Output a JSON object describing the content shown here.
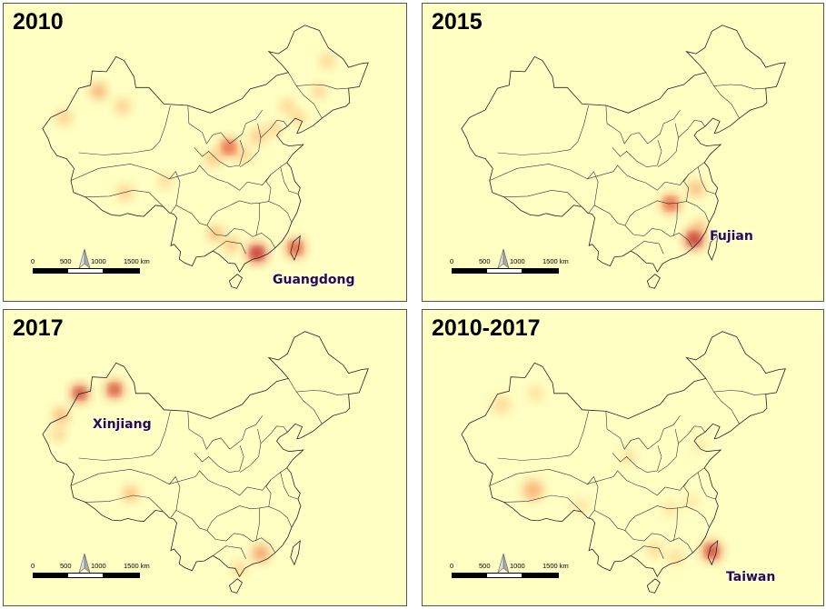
{
  "panels": [
    {
      "year": "2010",
      "label": "Guangdong",
      "hotspots": [
        {
          "lon": 113.8,
          "lat": 22.9,
          "r": 0.1,
          "intensity": 1.0
        },
        {
          "lon": 121.0,
          "lat": 23.6,
          "r": 0.1,
          "intensity": 0.8
        },
        {
          "lon": 108.5,
          "lat": 37.0,
          "r": 0.1,
          "intensity": 0.75
        },
        {
          "lon": 105.5,
          "lat": 35.5,
          "r": 0.08,
          "intensity": 0.5
        },
        {
          "lon": 84.0,
          "lat": 44.5,
          "r": 0.08,
          "intensity": 0.65
        },
        {
          "lon": 88.5,
          "lat": 42.5,
          "r": 0.08,
          "intensity": 0.45
        },
        {
          "lon": 77.5,
          "lat": 41.0,
          "r": 0.08,
          "intensity": 0.45
        },
        {
          "lon": 89.0,
          "lat": 31.0,
          "r": 0.08,
          "intensity": 0.45
        },
        {
          "lon": 96.5,
          "lat": 32.5,
          "r": 0.07,
          "intensity": 0.4
        },
        {
          "lon": 106.0,
          "lat": 25.5,
          "r": 0.08,
          "intensity": 0.55
        },
        {
          "lon": 111.5,
          "lat": 36.0,
          "r": 0.07,
          "intensity": 0.45
        },
        {
          "lon": 114.0,
          "lat": 38.5,
          "r": 0.08,
          "intensity": 0.5
        },
        {
          "lon": 117.0,
          "lat": 39.5,
          "r": 0.07,
          "intensity": 0.45
        },
        {
          "lon": 119.5,
          "lat": 42.5,
          "r": 0.07,
          "intensity": 0.45
        },
        {
          "lon": 121.5,
          "lat": 41.0,
          "r": 0.07,
          "intensity": 0.45
        },
        {
          "lon": 125.5,
          "lat": 44.5,
          "r": 0.07,
          "intensity": 0.45
        },
        {
          "lon": 127.0,
          "lat": 48.5,
          "r": 0.07,
          "intensity": 0.45
        },
        {
          "lon": 109.0,
          "lat": 24.0,
          "r": 0.08,
          "intensity": 0.5
        }
      ]
    },
    {
      "year": "2015",
      "label": "Fujian",
      "hotspots": [
        {
          "lon": 117.5,
          "lat": 24.8,
          "r": 0.1,
          "intensity": 1.0
        },
        {
          "lon": 113.0,
          "lat": 29.5,
          "r": 0.1,
          "intensity": 0.75
        },
        {
          "lon": 117.8,
          "lat": 31.5,
          "r": 0.08,
          "intensity": 0.6
        },
        {
          "lon": 118.5,
          "lat": 26.5,
          "r": 0.07,
          "intensity": 0.5
        }
      ]
    },
    {
      "year": "2017",
      "label": "Xinjiang",
      "hotspots": [
        {
          "lon": 80.5,
          "lat": 45.0,
          "r": 0.09,
          "intensity": 0.95
        },
        {
          "lon": 87.0,
          "lat": 45.5,
          "r": 0.09,
          "intensity": 0.9
        },
        {
          "lon": 77.0,
          "lat": 42.0,
          "r": 0.08,
          "intensity": 0.6
        },
        {
          "lon": 76.5,
          "lat": 39.5,
          "r": 0.07,
          "intensity": 0.45
        },
        {
          "lon": 90.0,
          "lat": 31.5,
          "r": 0.08,
          "intensity": 0.55
        },
        {
          "lon": 114.5,
          "lat": 23.5,
          "r": 0.09,
          "intensity": 0.7
        },
        {
          "lon": 110.5,
          "lat": 21.5,
          "r": 0.07,
          "intensity": 0.45
        }
      ]
    },
    {
      "year": "2010-2017",
      "label": "Taiwan",
      "hotspots": [
        {
          "lon": 120.8,
          "lat": 23.8,
          "r": 0.1,
          "intensity": 0.9
        },
        {
          "lon": 87.0,
          "lat": 32.0,
          "r": 0.11,
          "intensity": 0.55
        },
        {
          "lon": 81.0,
          "lat": 43.5,
          "r": 0.1,
          "intensity": 0.3
        },
        {
          "lon": 87.5,
          "lat": 45.0,
          "r": 0.08,
          "intensity": 0.3
        },
        {
          "lon": 110.0,
          "lat": 24.0,
          "r": 0.08,
          "intensity": 0.35
        },
        {
          "lon": 114.0,
          "lat": 23.0,
          "r": 0.08,
          "intensity": 0.35
        },
        {
          "lon": 105.0,
          "lat": 36.5,
          "r": 0.08,
          "intensity": 0.28
        },
        {
          "lon": 113.0,
          "lat": 29.5,
          "r": 0.08,
          "intensity": 0.25
        },
        {
          "lon": 117.0,
          "lat": 30.5,
          "r": 0.07,
          "intensity": 0.25
        },
        {
          "lon": 96.0,
          "lat": 30.0,
          "r": 0.08,
          "intensity": 0.25
        },
        {
          "lon": 118.5,
          "lat": 38.0,
          "r": 0.07,
          "intensity": 0.25
        }
      ]
    }
  ],
  "scale_bar": {
    "ticks": [
      "0",
      "500",
      "1000",
      "1500 km"
    ]
  },
  "colors": {
    "background": "#ffffc3",
    "border": "#222222",
    "hot": "#d7191c",
    "mid": "#fdae61"
  }
}
